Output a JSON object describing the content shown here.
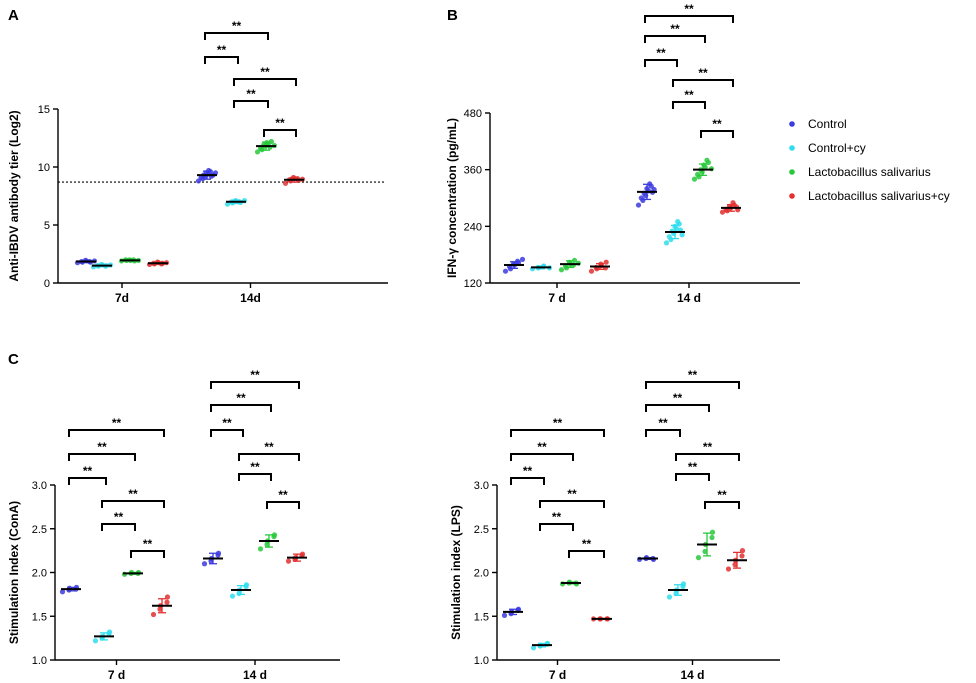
{
  "chart_data": [
    {
      "type": "scatter",
      "panel": "A",
      "ylabel": "Anti-IBDV antibody tier (Log2)",
      "ylim": [
        0,
        15
      ],
      "yticks": [
        0,
        5,
        10,
        15
      ],
      "categories": [
        "7d",
        "14d"
      ],
      "reference_line": 8.7,
      "series": [
        {
          "name": "Control",
          "color": "#3B3BE0",
          "groups": [
            {
              "mean": 1.85,
              "sd": 0.08,
              "points": [
                1.75,
                1.8,
                1.85,
                1.9,
                1.95,
                1.8,
                1.85,
                1.9
              ]
            },
            {
              "mean": 9.3,
              "sd": 0.35,
              "points": [
                8.8,
                9.0,
                9.1,
                9.2,
                9.3,
                9.4,
                9.5,
                9.6,
                9.7,
                9.3,
                9.2,
                9.5
              ]
            }
          ]
        },
        {
          "name": "Control+cy",
          "color": "#2FDDEE",
          "groups": [
            {
              "mean": 1.5,
              "sd": 0.06,
              "points": [
                1.4,
                1.45,
                1.5,
                1.55,
                1.6,
                1.5,
                1.45,
                1.55
              ]
            },
            {
              "mean": 7.0,
              "sd": 0.15,
              "points": [
                6.8,
                6.9,
                7.0,
                7.05,
                7.1,
                6.95,
                7.0,
                7.1
              ]
            }
          ]
        },
        {
          "name": "Lactobacillus salivarius",
          "color": "#27C93A",
          "groups": [
            {
              "mean": 1.95,
              "sd": 0.05,
              "points": [
                1.9,
                1.95,
                2.0,
                1.95,
                2.0,
                1.9,
                2.0,
                1.95
              ]
            },
            {
              "mean": 11.8,
              "sd": 0.35,
              "points": [
                11.3,
                11.5,
                11.6,
                11.8,
                11.9,
                12.0,
                12.1,
                12.2,
                11.7,
                11.85
              ]
            }
          ]
        },
        {
          "name": "Lactobacillus salivarius+cy",
          "color": "#E33030",
          "groups": [
            {
              "mean": 1.7,
              "sd": 0.06,
              "points": [
                1.6,
                1.65,
                1.7,
                1.75,
                1.8,
                1.7,
                1.65,
                1.75
              ]
            },
            {
              "mean": 8.9,
              "sd": 0.2,
              "points": [
                8.6,
                8.8,
                8.9,
                9.0,
                9.1,
                8.85,
                9.0,
                8.95
              ]
            }
          ]
        }
      ],
      "comparisons": [
        {
          "group": 1,
          "from": 0,
          "to": 1,
          "label": "**"
        },
        {
          "group": 1,
          "from": 0,
          "to": 2,
          "label": "**"
        },
        {
          "group": 1,
          "from": 1,
          "to": 2,
          "label": "**"
        },
        {
          "group": 1,
          "from": 1,
          "to": 3,
          "label": "**"
        },
        {
          "group": 1,
          "from": 2,
          "to": 3,
          "label": "**"
        }
      ]
    },
    {
      "type": "scatter",
      "panel": "B",
      "ylabel": "IFN-γ concentration (pg/mL)",
      "ylim": [
        120,
        480
      ],
      "yticks": [
        120,
        240,
        360,
        480
      ],
      "categories": [
        "7 d",
        "14 d"
      ],
      "series": [
        {
          "name": "Control",
          "color": "#3B3BE0",
          "groups": [
            {
              "mean": 158,
              "sd": 7,
              "points": [
                145,
                150,
                155,
                158,
                160,
                163,
                166,
                170
              ]
            },
            {
              "mean": 313,
              "sd": 16,
              "points": [
                285,
                295,
                300,
                305,
                310,
                315,
                320,
                325,
                330,
                318,
                312
              ]
            }
          ]
        },
        {
          "name": "Control+cy",
          "color": "#2FDDEE",
          "groups": [
            {
              "mean": 153,
              "sd": 3,
              "points": [
                150,
                152,
                153,
                155,
                156,
                152
              ]
            },
            {
              "mean": 228,
              "sd": 14,
              "points": [
                205,
                212,
                218,
                225,
                230,
                235,
                240,
                245,
                250,
                222,
                232
              ]
            }
          ]
        },
        {
          "name": "Lactobacillus salivarius",
          "color": "#27C93A",
          "groups": [
            {
              "mean": 160,
              "sd": 7,
              "points": [
                148,
                152,
                156,
                160,
                164,
                168,
                158,
                162
              ]
            },
            {
              "mean": 360,
              "sd": 12,
              "points": [
                340,
                345,
                350,
                355,
                360,
                365,
                370,
                375,
                380,
                362
              ]
            }
          ]
        },
        {
          "name": "Lactobacillus salivarius+cy",
          "color": "#E33030",
          "groups": [
            {
              "mean": 155,
              "sd": 6,
              "points": [
                145,
                150,
                153,
                157,
                160,
                164,
                152
              ]
            },
            {
              "mean": 279,
              "sd": 7,
              "points": [
                270,
                273,
                276,
                279,
                282,
                285,
                290,
                275,
                281
              ]
            }
          ]
        }
      ],
      "comparisons": [
        {
          "group": 1,
          "from": 0,
          "to": 1,
          "label": "**"
        },
        {
          "group": 1,
          "from": 0,
          "to": 2,
          "label": "**"
        },
        {
          "group": 1,
          "from": 0,
          "to": 3,
          "label": "**"
        },
        {
          "group": 1,
          "from": 1,
          "to": 2,
          "label": "**"
        },
        {
          "group": 1,
          "from": 1,
          "to": 3,
          "label": "**"
        },
        {
          "group": 1,
          "from": 2,
          "to": 3,
          "label": "**"
        }
      ]
    },
    {
      "type": "scatter",
      "panel": "C",
      "ylabel": "Stimulation Index (ConA)",
      "ylim": [
        1.0,
        3.0
      ],
      "yticks": [
        1.0,
        1.5,
        2.0,
        2.5,
        3.0
      ],
      "categories": [
        "7 d",
        "14 d"
      ],
      "series": [
        {
          "name": "Control",
          "color": "#3B3BE0",
          "groups": [
            {
              "mean": 1.81,
              "sd": 0.02,
              "points": [
                1.78,
                1.8,
                1.82,
                1.81,
                1.83
              ]
            },
            {
              "mean": 2.16,
              "sd": 0.06,
              "points": [
                2.1,
                2.13,
                2.16,
                2.2,
                2.22
              ]
            }
          ]
        },
        {
          "name": "Control+cy",
          "color": "#2FDDEE",
          "groups": [
            {
              "mean": 1.27,
              "sd": 0.04,
              "points": [
                1.22,
                1.25,
                1.27,
                1.3,
                1.32
              ]
            },
            {
              "mean": 1.8,
              "sd": 0.05,
              "points": [
                1.73,
                1.76,
                1.8,
                1.84,
                1.86
              ]
            }
          ]
        },
        {
          "name": "Lactobacillus salivarius",
          "color": "#27C93A",
          "groups": [
            {
              "mean": 1.99,
              "sd": 0.01,
              "points": [
                1.98,
                1.99,
                2.0,
                1.99,
                2.0
              ]
            },
            {
              "mean": 2.36,
              "sd": 0.07,
              "points": [
                2.27,
                2.32,
                2.36,
                2.41,
                2.43
              ]
            }
          ]
        },
        {
          "name": "Lactobacillus salivarius+cy",
          "color": "#E33030",
          "groups": [
            {
              "mean": 1.62,
              "sd": 0.08,
              "points": [
                1.52,
                1.58,
                1.62,
                1.66,
                1.72
              ]
            },
            {
              "mean": 2.17,
              "sd": 0.04,
              "points": [
                2.13,
                2.15,
                2.17,
                2.19,
                2.21
              ]
            }
          ]
        }
      ],
      "comparisons": [
        {
          "group": 0,
          "from": 0,
          "to": 1,
          "label": "**"
        },
        {
          "group": 0,
          "from": 0,
          "to": 2,
          "label": "**"
        },
        {
          "group": 0,
          "from": 0,
          "to": 3,
          "label": "**"
        },
        {
          "group": 0,
          "from": 1,
          "to": 2,
          "label": "**"
        },
        {
          "group": 0,
          "from": 1,
          "to": 3,
          "label": "**"
        },
        {
          "group": 0,
          "from": 2,
          "to": 3,
          "label": "**"
        },
        {
          "group": 1,
          "from": 0,
          "to": 1,
          "label": "**"
        },
        {
          "group": 1,
          "from": 0,
          "to": 2,
          "label": "**"
        },
        {
          "group": 1,
          "from": 0,
          "to": 3,
          "label": "**"
        },
        {
          "group": 1,
          "from": 1,
          "to": 2,
          "label": "**"
        },
        {
          "group": 1,
          "from": 1,
          "to": 3,
          "label": "**"
        },
        {
          "group": 1,
          "from": 2,
          "to": 3,
          "label": "**"
        }
      ]
    },
    {
      "type": "scatter",
      "panel": "",
      "ylabel": "Stimulation index (LPS)",
      "ylim": [
        1.0,
        3.0
      ],
      "yticks": [
        1.0,
        1.5,
        2.0,
        2.5,
        3.0
      ],
      "categories": [
        "7 d",
        "14 d"
      ],
      "series": [
        {
          "name": "Control",
          "color": "#3B3BE0",
          "groups": [
            {
              "mean": 1.55,
              "sd": 0.03,
              "points": [
                1.51,
                1.53,
                1.55,
                1.57,
                1.58
              ]
            },
            {
              "mean": 2.16,
              "sd": 0.01,
              "points": [
                2.15,
                2.16,
                2.17,
                2.16,
                2.15
              ]
            }
          ]
        },
        {
          "name": "Control+cy",
          "color": "#2FDDEE",
          "groups": [
            {
              "mean": 1.17,
              "sd": 0.02,
              "points": [
                1.14,
                1.16,
                1.17,
                1.18,
                1.19
              ]
            },
            {
              "mean": 1.8,
              "sd": 0.06,
              "points": [
                1.72,
                1.76,
                1.8,
                1.84,
                1.87
              ]
            }
          ]
        },
        {
          "name": "Lactobacillus salivarius",
          "color": "#27C93A",
          "groups": [
            {
              "mean": 1.88,
              "sd": 0.01,
              "points": [
                1.87,
                1.88,
                1.89,
                1.88,
                1.87
              ]
            },
            {
              "mean": 2.32,
              "sd": 0.13,
              "points": [
                2.17,
                2.24,
                2.32,
                2.4,
                2.46
              ]
            }
          ]
        },
        {
          "name": "Lactobacillus salivarius+cy",
          "color": "#E33030",
          "groups": [
            {
              "mean": 1.47,
              "sd": 0.005,
              "points": [
                1.47,
                1.47,
                1.47,
                1.47,
                1.47
              ]
            },
            {
              "mean": 2.14,
              "sd": 0.09,
              "points": [
                2.04,
                2.09,
                2.14,
                2.19,
                2.25
              ]
            }
          ]
        }
      ],
      "comparisons": [
        {
          "group": 0,
          "from": 0,
          "to": 1,
          "label": "**"
        },
        {
          "group": 0,
          "from": 0,
          "to": 2,
          "label": "**"
        },
        {
          "group": 0,
          "from": 0,
          "to": 3,
          "label": "**"
        },
        {
          "group": 0,
          "from": 1,
          "to": 2,
          "label": "**"
        },
        {
          "group": 0,
          "from": 1,
          "to": 3,
          "label": "**"
        },
        {
          "group": 0,
          "from": 2,
          "to": 3,
          "label": "**"
        },
        {
          "group": 1,
          "from": 0,
          "to": 1,
          "label": "**"
        },
        {
          "group": 1,
          "from": 0,
          "to": 2,
          "label": "**"
        },
        {
          "group": 1,
          "from": 0,
          "to": 3,
          "label": "**"
        },
        {
          "group": 1,
          "from": 1,
          "to": 2,
          "label": "**"
        },
        {
          "group": 1,
          "from": 1,
          "to": 3,
          "label": "**"
        },
        {
          "group": 1,
          "from": 2,
          "to": 3,
          "label": "**"
        }
      ]
    }
  ],
  "legend": {
    "items": [
      {
        "label": "Control",
        "color": "#3B3BE0"
      },
      {
        "label": "Control+cy",
        "color": "#2FDDEE"
      },
      {
        "label": "Lactobacillus salivarius",
        "color": "#27C93A"
      },
      {
        "label": "Lactobacillus salivarius+cy",
        "color": "#E33030"
      }
    ]
  }
}
